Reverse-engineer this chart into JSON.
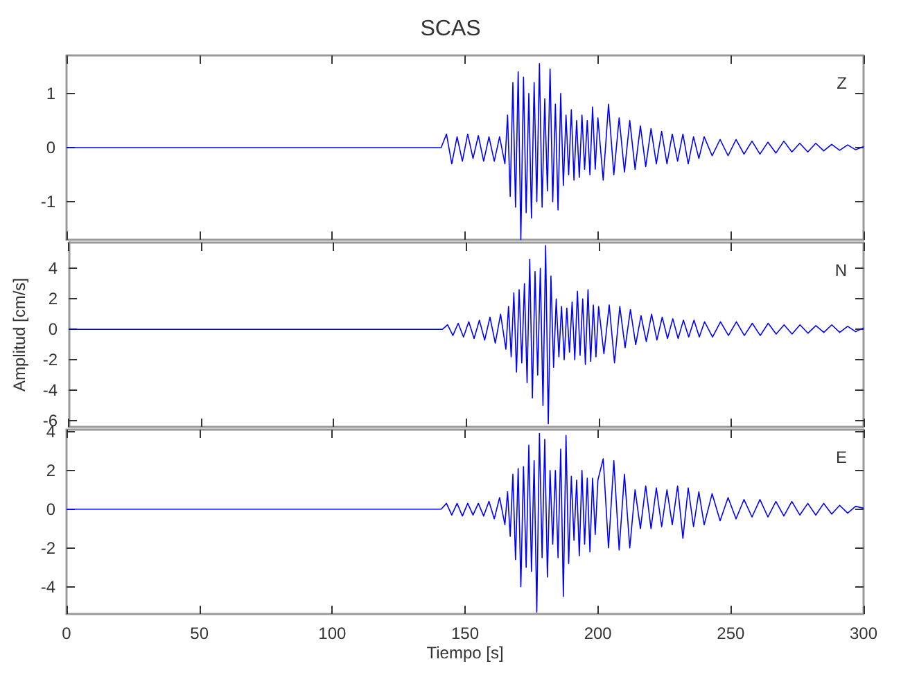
{
  "chart_data": [
    {
      "type": "line",
      "title": "SCAS",
      "annotations": [
        "Z"
      ],
      "color": "#0000ff",
      "xlim": [
        0,
        300
      ],
      "xticks": [
        0,
        50,
        100,
        150,
        200,
        250,
        300
      ],
      "ylim": [
        -1.7,
        1.7
      ],
      "yticks": [
        -1,
        0,
        1
      ],
      "tick_labels": "y",
      "x": [
        0,
        141,
        143,
        145,
        147,
        149,
        151,
        153,
        155,
        157,
        159,
        161,
        163,
        165,
        166,
        167,
        168,
        169,
        170,
        171,
        172,
        173,
        174,
        175,
        176,
        177,
        178,
        179,
        180,
        181,
        182,
        183,
        184,
        185,
        186,
        187,
        188,
        189,
        190,
        191,
        192,
        193,
        194,
        195,
        196,
        197,
        198,
        199,
        200,
        202,
        204,
        206,
        208,
        210,
        212,
        214,
        216,
        218,
        220,
        222,
        224,
        226,
        228,
        230,
        232,
        234,
        236,
        238,
        240,
        243,
        246,
        249,
        252,
        255,
        258,
        261,
        264,
        267,
        270,
        273,
        276,
        279,
        282,
        285,
        288,
        291,
        294,
        297,
        300
      ],
      "values": [
        0,
        0,
        0.25,
        -0.3,
        0.2,
        -0.25,
        0.25,
        -0.2,
        0.22,
        -0.25,
        0.2,
        -0.25,
        0.2,
        -0.3,
        0.6,
        -0.9,
        1.2,
        -1.1,
        1.4,
        -1.7,
        1.3,
        -1.2,
        1.0,
        -1.3,
        1.2,
        -1.0,
        1.55,
        -1.1,
        0.9,
        -0.8,
        1.45,
        -1.0,
        0.8,
        -1.15,
        1.0,
        -0.7,
        0.6,
        -0.5,
        0.7,
        -0.6,
        0.5,
        -0.55,
        0.6,
        -0.4,
        0.5,
        -0.5,
        0.75,
        -0.4,
        0.55,
        -0.6,
        0.8,
        -0.5,
        0.55,
        -0.45,
        0.5,
        -0.4,
        0.4,
        -0.35,
        0.35,
        -0.3,
        0.3,
        -0.3,
        0.25,
        -0.25,
        0.25,
        -0.3,
        0.2,
        -0.2,
        0.2,
        -0.15,
        0.15,
        -0.15,
        0.15,
        -0.12,
        0.12,
        -0.12,
        0.1,
        -0.1,
        0.12,
        -0.08,
        0.08,
        -0.08,
        0.08,
        -0.06,
        0.06,
        -0.05,
        0.05,
        -0.04,
        0.02
      ]
    },
    {
      "type": "line",
      "ylabel": "Amplitud [cm/s]",
      "annotations": [
        "N"
      ],
      "color": "#0000ff",
      "xlim": [
        0,
        300
      ],
      "xticks": [
        0,
        50,
        100,
        150,
        200,
        250,
        300
      ],
      "ylim": [
        -6.4,
        5.7
      ],
      "yticks": [
        -6,
        -4,
        -2,
        0,
        2,
        4
      ],
      "tick_labels": "y",
      "x": [
        0,
        141,
        143,
        145,
        147,
        149,
        151,
        153,
        155,
        157,
        159,
        161,
        163,
        165,
        166,
        167,
        168,
        169,
        170,
        171,
        172,
        173,
        174,
        175,
        176,
        177,
        178,
        179,
        180,
        181,
        182,
        183,
        184,
        185,
        186,
        187,
        188,
        189,
        190,
        191,
        192,
        193,
        194,
        195,
        196,
        197,
        198,
        199,
        200,
        202,
        204,
        206,
        208,
        210,
        212,
        214,
        216,
        218,
        220,
        222,
        224,
        226,
        228,
        230,
        232,
        234,
        236,
        238,
        240,
        243,
        246,
        249,
        252,
        255,
        258,
        261,
        264,
        267,
        270,
        273,
        276,
        279,
        282,
        285,
        288,
        291,
        294,
        297,
        300
      ],
      "values": [
        0,
        0,
        0.3,
        -0.4,
        0.4,
        -0.5,
        0.5,
        -0.6,
        0.6,
        -0.7,
        0.8,
        -0.9,
        1.0,
        -1.3,
        1.5,
        -1.8,
        2.4,
        -2.8,
        2.6,
        -2.2,
        3.0,
        -3.5,
        4.6,
        -4.5,
        3.8,
        -3.0,
        4.0,
        -5.0,
        5.5,
        -6.2,
        3.5,
        -2.5,
        2.0,
        -1.8,
        1.5,
        -2.0,
        1.4,
        -1.5,
        1.8,
        -2.0,
        2.5,
        -1.7,
        2.0,
        -2.3,
        2.6,
        -2.1,
        1.6,
        -1.8,
        1.5,
        -1.6,
        1.6,
        -2.2,
        1.5,
        -1.2,
        1.3,
        -1.0,
        0.9,
        -0.8,
        1.0,
        -0.7,
        0.8,
        -0.6,
        0.7,
        -0.6,
        0.6,
        -0.5,
        0.6,
        -0.5,
        0.5,
        -0.5,
        0.5,
        -0.4,
        0.5,
        -0.4,
        0.4,
        -0.4,
        0.4,
        -0.3,
        0.3,
        -0.3,
        0.3,
        -0.25,
        0.25,
        -0.2,
        0.3,
        -0.2,
        0.2,
        -0.15,
        0.1
      ]
    },
    {
      "type": "line",
      "xlabel": "Tiempo [s]",
      "annotations": [
        "E"
      ],
      "color": "#0000ff",
      "xlim": [
        0,
        300
      ],
      "xticks": [
        0,
        50,
        100,
        150,
        200,
        250,
        300
      ],
      "ylim": [
        -5.4,
        4.1
      ],
      "yticks": [
        -4,
        -2,
        0,
        2,
        4
      ],
      "x": [
        0,
        141,
        143,
        145,
        147,
        149,
        151,
        153,
        155,
        157,
        159,
        161,
        163,
        165,
        166,
        167,
        168,
        169,
        170,
        171,
        172,
        173,
        174,
        175,
        176,
        177,
        178,
        179,
        180,
        181,
        182,
        183,
        184,
        185,
        186,
        187,
        188,
        189,
        190,
        191,
        192,
        193,
        194,
        195,
        196,
        197,
        198,
        199,
        200,
        202,
        204,
        206,
        208,
        210,
        212,
        214,
        216,
        218,
        220,
        222,
        224,
        226,
        228,
        230,
        232,
        234,
        236,
        238,
        240,
        243,
        246,
        249,
        252,
        255,
        258,
        261,
        264,
        267,
        270,
        273,
        276,
        279,
        282,
        285,
        288,
        291,
        294,
        297,
        300
      ],
      "values": [
        0,
        0,
        0.3,
        -0.3,
        0.3,
        -0.35,
        0.3,
        -0.3,
        0.3,
        -0.35,
        0.4,
        -0.5,
        0.6,
        -0.8,
        0.9,
        -1.4,
        1.8,
        -2.6,
        2.1,
        -4.0,
        2.2,
        -3.0,
        3.3,
        -3.2,
        2.5,
        -5.3,
        3.9,
        -2.5,
        3.6,
        -3.5,
        2.0,
        -1.8,
        2.0,
        -2.5,
        3.1,
        -4.5,
        3.8,
        -2.8,
        1.7,
        -1.6,
        1.5,
        -2.4,
        2.0,
        -1.8,
        1.6,
        -2.2,
        1.6,
        -1.3,
        1.5,
        2.6,
        -2.0,
        2.5,
        -2.1,
        1.8,
        -2.0,
        1.0,
        -1.0,
        1.2,
        -1.0,
        1.1,
        -0.9,
        1.0,
        -0.8,
        1.2,
        -1.5,
        1.1,
        -0.9,
        0.9,
        -0.8,
        0.8,
        -0.6,
        0.6,
        -0.5,
        0.5,
        -0.4,
        0.5,
        -0.4,
        0.4,
        -0.35,
        0.4,
        -0.3,
        0.3,
        -0.3,
        0.3,
        -0.25,
        0.2,
        -0.2,
        0.15,
        0.05
      ]
    }
  ]
}
